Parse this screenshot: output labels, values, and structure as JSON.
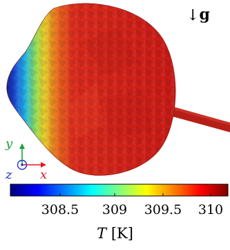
{
  "gravity": {
    "arrow": "↓",
    "label": "g"
  },
  "axes": {
    "x_label": "x",
    "y_label": "y",
    "z_label": "z",
    "x_color": "#e8141e",
    "y_color": "#1aa13a",
    "z_color": "#2232c9"
  },
  "colorbar": {
    "ticks": [
      "308.5",
      "309",
      "309.5",
      "310"
    ],
    "tick_values": [
      308.5,
      309.0,
      309.5,
      310.0
    ],
    "range": [
      308.0,
      310.2
    ],
    "title_var": "T",
    "title_unit": "[K]",
    "colormap": [
      "#00007f",
      "#0000ff",
      "#0080ff",
      "#00ffff",
      "#80ff80",
      "#ffff00",
      "#ff8000",
      "#ff0000",
      "#7f0000"
    ]
  }
}
